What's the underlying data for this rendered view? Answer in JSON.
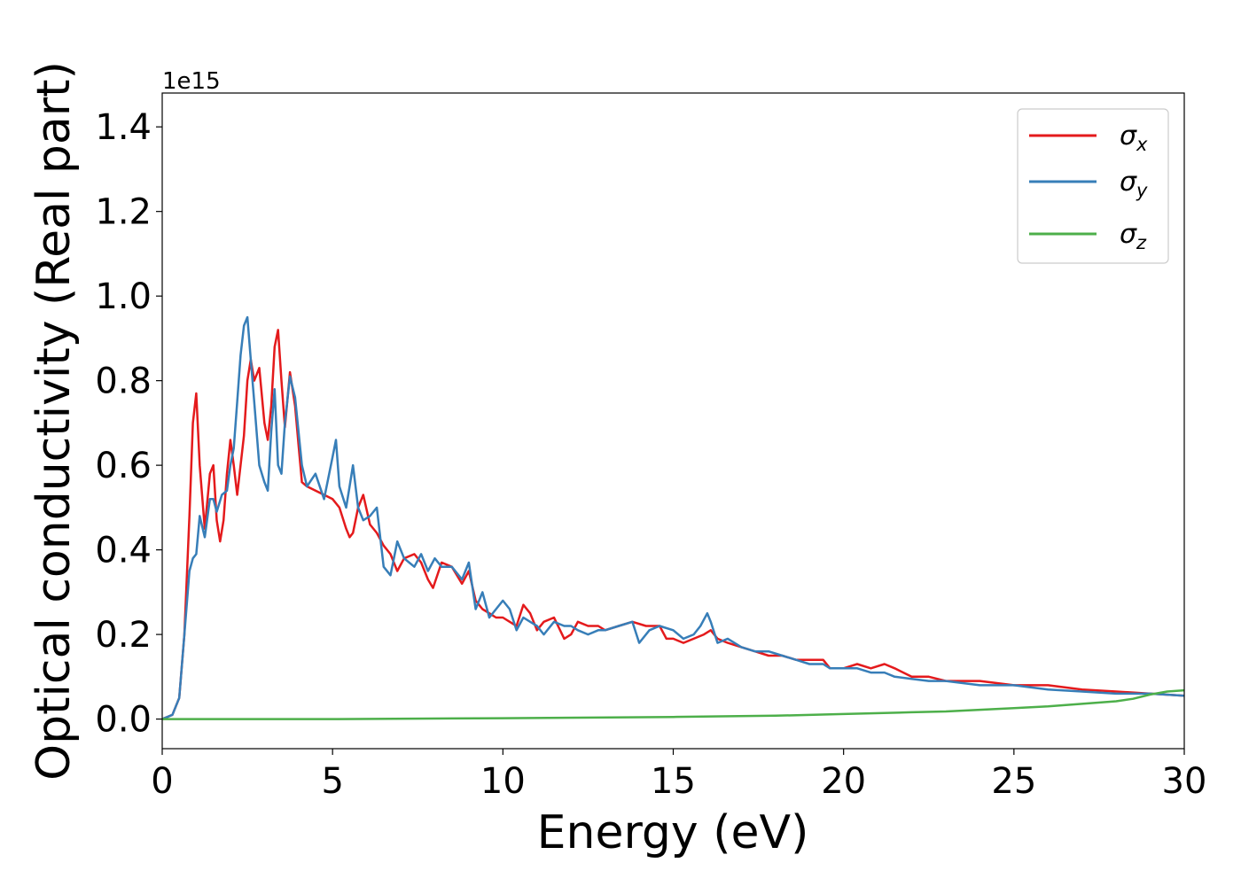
{
  "chart_data": {
    "type": "line",
    "title": "",
    "xlabel": "Energy (eV)",
    "ylabel": "Optical conductivity (Real part)",
    "y_scale_offset": "1e15",
    "xlim": [
      0,
      30
    ],
    "ylim": [
      -0.07,
      1.48
    ],
    "x_ticks": [
      0,
      5,
      10,
      15,
      20,
      25,
      30
    ],
    "x_tick_labels": [
      "0",
      "5",
      "10",
      "15",
      "20",
      "25",
      "30"
    ],
    "y_ticks": [
      0.0,
      0.2,
      0.4,
      0.6,
      0.8,
      1.0,
      1.2,
      1.4
    ],
    "y_tick_labels": [
      "0.0",
      "0.2",
      "0.4",
      "0.6",
      "0.8",
      "1.0",
      "1.2",
      "1.4"
    ],
    "grid": false,
    "legend_position": "top-right",
    "legend": {
      "sigma_x": {
        "base": "σ",
        "sub": "x"
      },
      "sigma_y": {
        "base": "σ",
        "sub": "y"
      },
      "sigma_z": {
        "base": "σ",
        "sub": "z"
      }
    },
    "series": [
      {
        "id": "sigma_x",
        "color": "#e41a1c",
        "x": [
          0,
          0.3,
          0.5,
          0.65,
          0.8,
          0.9,
          1.0,
          1.1,
          1.25,
          1.4,
          1.5,
          1.6,
          1.7,
          1.8,
          1.9,
          2.0,
          2.1,
          2.2,
          2.3,
          2.4,
          2.5,
          2.6,
          2.7,
          2.85,
          3.0,
          3.1,
          3.2,
          3.3,
          3.4,
          3.5,
          3.6,
          3.75,
          3.9,
          4.0,
          4.1,
          4.25,
          4.5,
          5.0,
          5.2,
          5.4,
          5.5,
          5.6,
          5.75,
          5.9,
          6.1,
          6.3,
          6.5,
          6.7,
          6.9,
          7.1,
          7.4,
          7.6,
          7.8,
          7.95,
          8.2,
          8.5,
          8.8,
          9.0,
          9.2,
          9.4,
          9.6,
          9.8,
          10.0,
          10.2,
          10.4,
          10.6,
          10.8,
          11.0,
          11.2,
          11.5,
          11.8,
          12.0,
          12.2,
          12.5,
          12.8,
          13.0,
          13.4,
          13.8,
          14.2,
          14.6,
          14.8,
          15.0,
          15.3,
          15.6,
          15.9,
          16.1,
          16.3,
          16.6,
          17.0,
          17.4,
          17.8,
          18.2,
          18.6,
          19.0,
          19.4,
          19.6,
          20.0,
          20.4,
          20.8,
          21.2,
          21.5,
          22.0,
          22.5,
          23.0,
          24.0,
          25.0,
          26.0,
          27.0,
          28.0,
          29.0,
          30.0
        ],
        "y": [
          0.0,
          0.01,
          0.05,
          0.2,
          0.48,
          0.7,
          0.77,
          0.6,
          0.45,
          0.58,
          0.6,
          0.47,
          0.42,
          0.47,
          0.58,
          0.66,
          0.6,
          0.53,
          0.6,
          0.67,
          0.8,
          0.85,
          0.8,
          0.83,
          0.7,
          0.66,
          0.74,
          0.88,
          0.92,
          0.8,
          0.69,
          0.82,
          0.74,
          0.65,
          0.56,
          0.55,
          0.54,
          0.52,
          0.5,
          0.45,
          0.43,
          0.44,
          0.5,
          0.53,
          0.46,
          0.44,
          0.41,
          0.39,
          0.35,
          0.38,
          0.39,
          0.37,
          0.33,
          0.31,
          0.37,
          0.36,
          0.32,
          0.35,
          0.28,
          0.26,
          0.25,
          0.24,
          0.24,
          0.23,
          0.22,
          0.27,
          0.25,
          0.21,
          0.23,
          0.24,
          0.19,
          0.2,
          0.23,
          0.22,
          0.22,
          0.21,
          0.22,
          0.23,
          0.22,
          0.22,
          0.19,
          0.19,
          0.18,
          0.19,
          0.2,
          0.21,
          0.19,
          0.18,
          0.17,
          0.16,
          0.15,
          0.15,
          0.14,
          0.14,
          0.14,
          0.12,
          0.12,
          0.13,
          0.12,
          0.13,
          0.12,
          0.1,
          0.1,
          0.09,
          0.09,
          0.08,
          0.08,
          0.07,
          0.065,
          0.06,
          0.055
        ]
      },
      {
        "id": "sigma_y",
        "color": "#377eb8",
        "x": [
          0,
          0.3,
          0.5,
          0.65,
          0.8,
          0.9,
          1.0,
          1.1,
          1.25,
          1.4,
          1.5,
          1.6,
          1.75,
          1.9,
          2.0,
          2.1,
          2.2,
          2.3,
          2.4,
          2.5,
          2.6,
          2.7,
          2.85,
          3.0,
          3.1,
          3.2,
          3.3,
          3.4,
          3.5,
          3.6,
          3.75,
          3.9,
          4.1,
          4.25,
          4.5,
          4.75,
          5.0,
          5.1,
          5.2,
          5.4,
          5.5,
          5.6,
          5.75,
          5.9,
          6.1,
          6.3,
          6.5,
          6.7,
          6.9,
          7.1,
          7.4,
          7.6,
          7.8,
          8.0,
          8.2,
          8.5,
          8.8,
          9.0,
          9.2,
          9.4,
          9.6,
          9.8,
          10.0,
          10.2,
          10.4,
          10.6,
          10.8,
          11.0,
          11.2,
          11.5,
          11.8,
          12.0,
          12.2,
          12.5,
          12.8,
          13.0,
          13.4,
          13.8,
          14.0,
          14.3,
          14.6,
          15.0,
          15.3,
          15.6,
          15.8,
          16.0,
          16.1,
          16.3,
          16.6,
          17.0,
          17.4,
          17.8,
          18.2,
          18.6,
          19.0,
          19.4,
          19.6,
          20.0,
          20.4,
          20.8,
          21.2,
          21.5,
          22.0,
          22.5,
          23.0,
          24.0,
          25.0,
          26.0,
          27.0,
          28.0,
          29.0,
          30.0
        ],
        "y": [
          0.0,
          0.01,
          0.05,
          0.2,
          0.35,
          0.38,
          0.39,
          0.48,
          0.43,
          0.52,
          0.52,
          0.49,
          0.53,
          0.54,
          0.6,
          0.64,
          0.75,
          0.86,
          0.93,
          0.95,
          0.85,
          0.75,
          0.6,
          0.56,
          0.54,
          0.68,
          0.78,
          0.6,
          0.58,
          0.7,
          0.81,
          0.76,
          0.6,
          0.55,
          0.58,
          0.52,
          0.62,
          0.66,
          0.55,
          0.5,
          0.55,
          0.6,
          0.5,
          0.47,
          0.48,
          0.5,
          0.36,
          0.34,
          0.42,
          0.38,
          0.36,
          0.39,
          0.35,
          0.38,
          0.36,
          0.36,
          0.33,
          0.37,
          0.26,
          0.3,
          0.24,
          0.26,
          0.28,
          0.26,
          0.21,
          0.24,
          0.23,
          0.22,
          0.2,
          0.23,
          0.22,
          0.22,
          0.21,
          0.2,
          0.21,
          0.21,
          0.22,
          0.23,
          0.18,
          0.21,
          0.22,
          0.21,
          0.19,
          0.2,
          0.22,
          0.25,
          0.23,
          0.18,
          0.19,
          0.17,
          0.16,
          0.16,
          0.15,
          0.14,
          0.13,
          0.13,
          0.12,
          0.12,
          0.12,
          0.11,
          0.11,
          0.1,
          0.095,
          0.09,
          0.09,
          0.08,
          0.08,
          0.07,
          0.065,
          0.06,
          0.06,
          0.055
        ]
      },
      {
        "id": "sigma_z",
        "color": "#4daf4a",
        "x": [
          0,
          5,
          10,
          15,
          18,
          20,
          22,
          23,
          24,
          25,
          26,
          27,
          28,
          28.5,
          29,
          29.5,
          30
        ],
        "y": [
          0.0,
          0.0,
          0.002,
          0.005,
          0.008,
          0.012,
          0.016,
          0.018,
          0.022,
          0.026,
          0.03,
          0.036,
          0.042,
          0.048,
          0.058,
          0.065,
          0.068
        ]
      }
    ]
  }
}
